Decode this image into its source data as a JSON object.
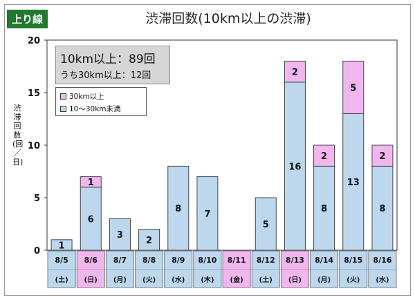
{
  "badge": "上り線",
  "title": "渋滞回数(10km以上の渋滞)",
  "summary": {
    "line1": "10km以上：89回",
    "line2": "うち30km以上：12回"
  },
  "ylabel": "渋滞回数(回／日)",
  "colors": {
    "over30": "#f2b6ee",
    "under30": "#bcd7ee",
    "badge": "#1f7a2e",
    "weekend_cell": "#f2b6ee",
    "weekday_cell": "#bcd7ee"
  },
  "chart_data": {
    "type": "bar",
    "stacked": true,
    "categories": [
      "8/5",
      "8/6",
      "8/7",
      "8/8",
      "8/9",
      "8/10",
      "8/11",
      "8/12",
      "8/13",
      "8/14",
      "8/15",
      "8/16"
    ],
    "weekdays": [
      "(土)",
      "(日)",
      "(月)",
      "(火)",
      "(水)",
      "(木)",
      "(金)",
      "(土)",
      "(日)",
      "(月)",
      "(火)",
      "(水)"
    ],
    "highlight": [
      false,
      true,
      false,
      false,
      false,
      false,
      true,
      false,
      true,
      false,
      false,
      false
    ],
    "ylim": [
      0,
      20
    ],
    "yticks": [
      0,
      5,
      10,
      15,
      20
    ],
    "grid": false,
    "legend_position": "top-left",
    "series": [
      {
        "name": "10～30km未満",
        "color": "#bcd7ee",
        "values": [
          1,
          6,
          3,
          2,
          8,
          7,
          0,
          5,
          16,
          8,
          13,
          8
        ]
      },
      {
        "name": "30km以上",
        "color": "#f2b6ee",
        "values": [
          0,
          1,
          0,
          0,
          0,
          0,
          0,
          0,
          2,
          2,
          5,
          2
        ]
      }
    ]
  }
}
